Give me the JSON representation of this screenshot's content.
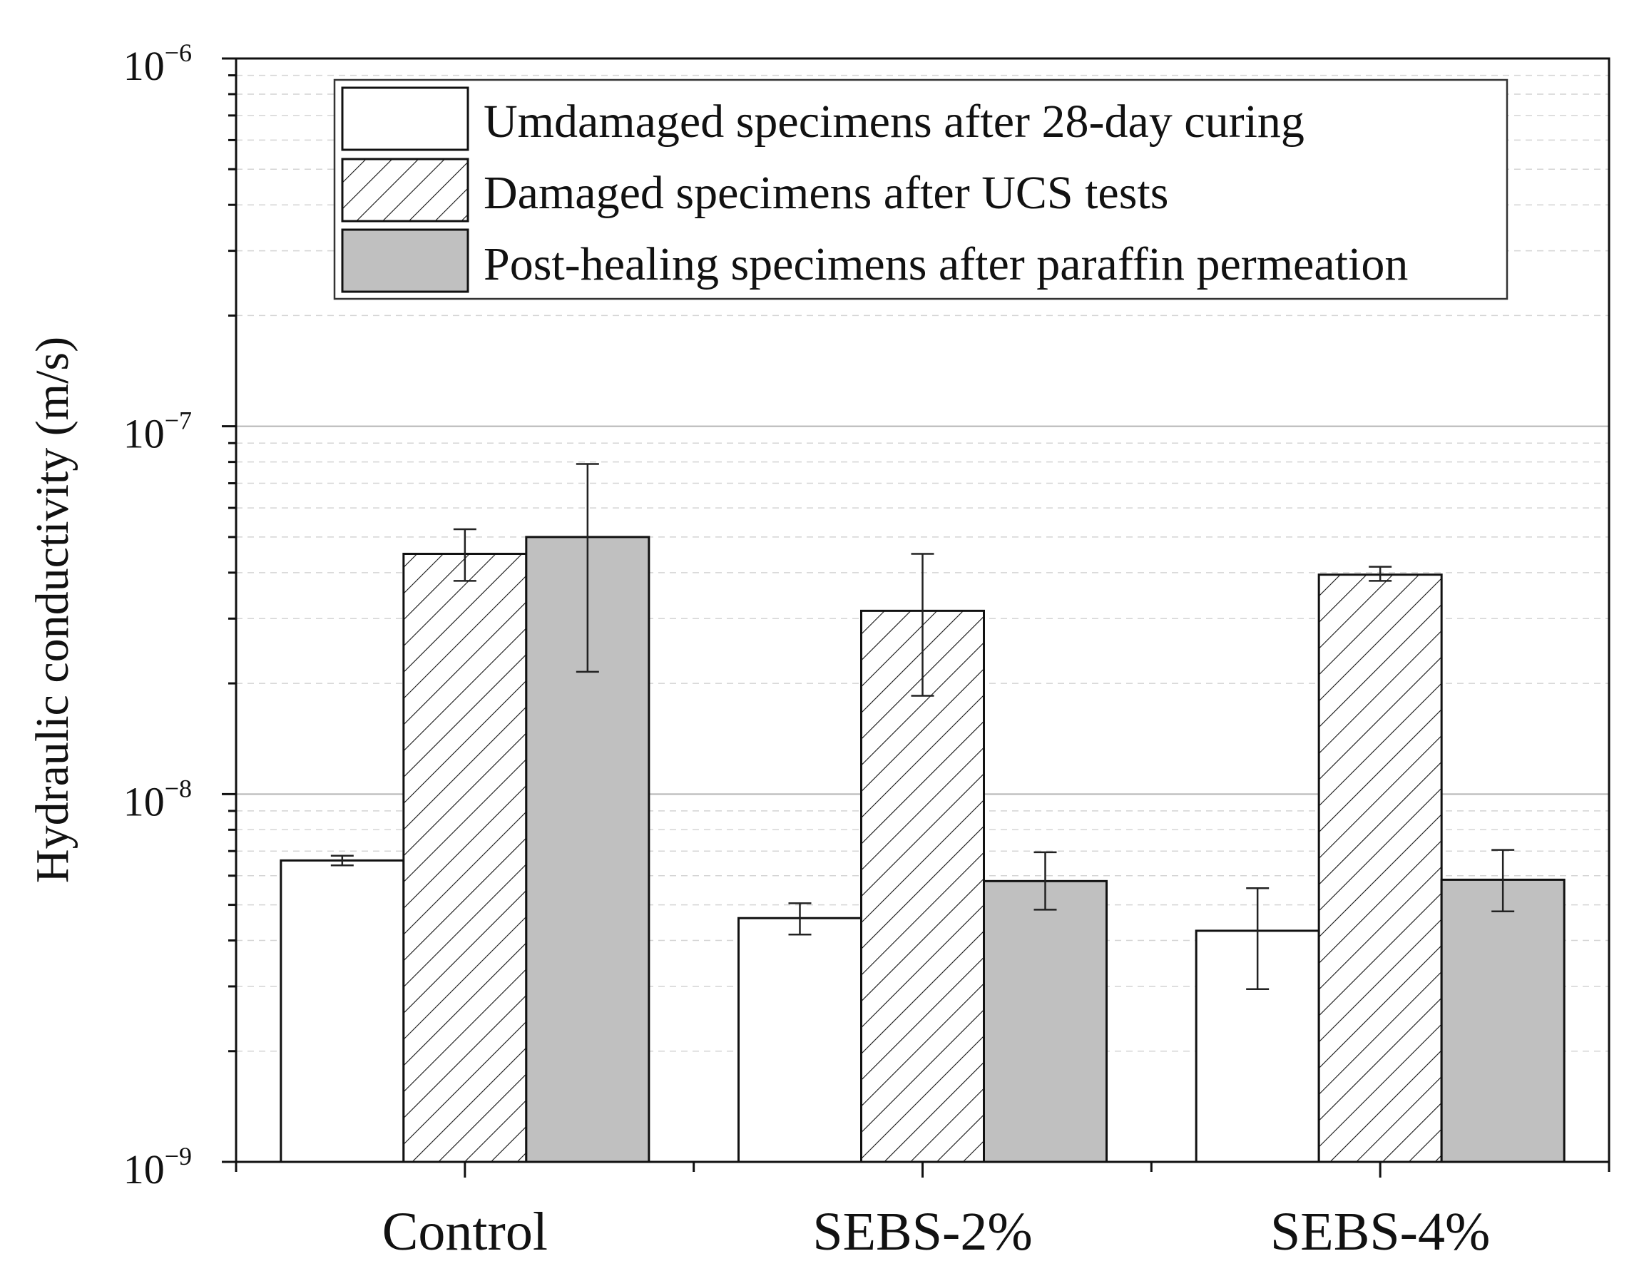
{
  "chart_data": {
    "type": "bar",
    "title": "",
    "xlabel": "",
    "ylabel": "Hydraulic conductivity (m/s)",
    "yscale": "log",
    "ylim": [
      1e-09,
      1e-06
    ],
    "yticks": [
      {
        "base": "10",
        "exp": "−9",
        "value": 1e-09
      },
      {
        "base": "10",
        "exp": "−8",
        "value": 1e-08
      },
      {
        "base": "10",
        "exp": "−7",
        "value": 1e-07
      },
      {
        "base": "10",
        "exp": "−6",
        "value": 1e-06
      }
    ],
    "categories": [
      "Control",
      "SEBS-2%",
      "SEBS-4%"
    ],
    "series": [
      {
        "name": "Umdamaged specimens after 28-day curing",
        "fill": "#ffffff",
        "pattern": "none",
        "values": [
          6.6e-09,
          4.6e-09,
          4.25e-09
        ],
        "err_low": [
          6.4e-09,
          4.15e-09,
          2.95e-09
        ],
        "err_high": [
          6.8e-09,
          5.05e-09,
          5.55e-09
        ]
      },
      {
        "name": "Damaged specimens after UCS tests",
        "fill": "#ffffff",
        "pattern": "hatch",
        "values": [
          4.5e-08,
          3.15e-08,
          3.95e-08
        ],
        "err_low": [
          3.8e-08,
          1.85e-08,
          3.8e-08
        ],
        "err_high": [
          5.25e-08,
          4.5e-08,
          4.15e-08
        ]
      },
      {
        "name": "Post-healing specimens after paraffin permeation",
        "fill": "#c0c0c0",
        "pattern": "none",
        "values": [
          5e-08,
          5.8e-09,
          5.85e-09
        ],
        "err_low": [
          2.15e-08,
          4.85e-09,
          4.8e-09
        ],
        "err_high": [
          7.9e-08,
          6.95e-09,
          7.05e-09
        ]
      }
    ],
    "grid": {
      "major": true,
      "minor": true
    },
    "legend_position": "top-center"
  }
}
